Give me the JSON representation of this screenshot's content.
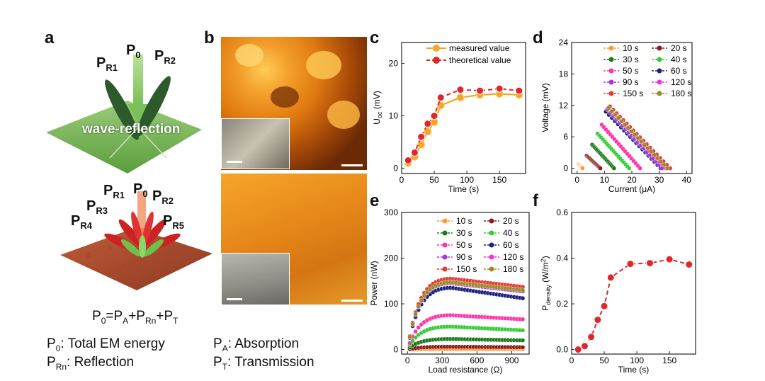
{
  "panels": {
    "a": "a",
    "b": "b",
    "c": "c",
    "d": "d",
    "e": "e",
    "f": "f"
  },
  "diagram_a": {
    "top_labels": [
      "P",
      "0",
      "P",
      "R1",
      "P",
      "R2"
    ],
    "top_caption": "wave-reflection",
    "bottom_labels": [
      {
        "main": "P",
        "sub": "0"
      },
      {
        "main": "P",
        "sub": "R1"
      },
      {
        "main": "P",
        "sub": "R2"
      },
      {
        "main": "P",
        "sub": "R3"
      },
      {
        "main": "P",
        "sub": "R4"
      },
      {
        "main": "P",
        "sub": "R5"
      }
    ],
    "equation": {
      "p0": "P",
      "p0sub": "0",
      "eq": "=",
      "pa": "P",
      "pasub": "A",
      "plus1": "+",
      "prn": "P",
      "prnsub": "Rn",
      "plus2": "+",
      "pt": "P",
      "ptsub": "T"
    }
  },
  "legend_text": {
    "p0": {
      "main": "P",
      "sub": "0",
      "desc": ":  Total EM energy"
    },
    "prn": {
      "main": "P",
      "sub": "Rn",
      "desc": ": Reflection"
    },
    "pa": {
      "main": "P",
      "sub": "A",
      "desc": ":  Absorption"
    },
    "pt": {
      "main": "P",
      "sub": "T",
      "desc": ": Transmission"
    }
  },
  "colors": {
    "orange": "#f5a623",
    "red": "#e0262b",
    "ocher": "#ff9933",
    "darkred": "#8b1a1a",
    "darkgreen": "#1a7a1a",
    "green": "#33cc33",
    "magenta": "#ff33aa",
    "navy": "#1a237e",
    "violet": "#aa33dd",
    "pink": "#ee33cc",
    "red2": "#e53935",
    "olive": "#9a8a20"
  },
  "chart_data": [
    {
      "id": "c",
      "type": "line",
      "xlabel": "Time (s)",
      "ylabel": "U",
      "ylabel_sub": "oc",
      "ylabel_unit": " (mV)",
      "xlim": [
        0,
        190
      ],
      "ylim": [
        -1,
        24
      ],
      "xticks": [
        0,
        50,
        100,
        150
      ],
      "yticks": [
        0,
        10,
        20
      ],
      "legend": [
        "measured value",
        "theoretical value"
      ],
      "series": [
        {
          "name": "measured value",
          "x": [
            10,
            20,
            30,
            40,
            50,
            60,
            90,
            120,
            150,
            180
          ],
          "y": [
            1.0,
            2.2,
            4.5,
            7.0,
            8.8,
            12.0,
            13.5,
            14.0,
            14.2,
            14.0
          ]
        },
        {
          "name": "theoretical value",
          "x": [
            10,
            20,
            30,
            40,
            50,
            60,
            90,
            120,
            150,
            180
          ],
          "y": [
            1.5,
            3.0,
            6.0,
            8.5,
            10.0,
            13.5,
            15.0,
            14.8,
            15.2,
            14.8
          ]
        }
      ]
    },
    {
      "id": "d",
      "type": "line",
      "xlabel": "Current (μA)",
      "ylabel": "Voltage (mV)",
      "xlim": [
        -2,
        42
      ],
      "ylim": [
        -1,
        24
      ],
      "xticks": [
        0,
        10,
        20,
        30,
        40
      ],
      "yticks": [
        0,
        6,
        12,
        18,
        24
      ],
      "legend": [
        "10 s",
        "20 s",
        "30 s",
        "40 s",
        "50 s",
        "60 s",
        "90 s",
        "120 s",
        "150 s",
        "180 s"
      ],
      "series": [
        {
          "name": "10 s",
          "x0": 2.0,
          "x1": 0.5,
          "y0": 0.0,
          "y1": 0.8
        },
        {
          "name": "20 s",
          "x0": 8.5,
          "x1": 3.5,
          "y0": 0.0,
          "y1": 2.4
        },
        {
          "name": "30 s",
          "x0": 13.5,
          "x1": 5.5,
          "y0": 0.0,
          "y1": 4.5
        },
        {
          "name": "40 s",
          "x0": 19.0,
          "x1": 7.5,
          "y0": 0.0,
          "y1": 6.6
        },
        {
          "name": "50 s",
          "x0": 23.0,
          "x1": 9.0,
          "y0": 0.0,
          "y1": 8.3
        },
        {
          "name": "60 s",
          "x0": 30.5,
          "x1": 10.5,
          "y0": 0.0,
          "y1": 10.8
        },
        {
          "name": "90 s",
          "x0": 31.0,
          "x1": 11.0,
          "y0": 0.0,
          "y1": 11.2
        },
        {
          "name": "120 s",
          "x0": 32.5,
          "x1": 11.5,
          "y0": 0.0,
          "y1": 11.6
        },
        {
          "name": "150 s",
          "x0": 34.0,
          "x1": 12.0,
          "y0": 0.0,
          "y1": 11.8
        },
        {
          "name": "180 s",
          "x0": 33.0,
          "x1": 11.5,
          "y0": 0.0,
          "y1": 11.5
        }
      ]
    },
    {
      "id": "e",
      "type": "line",
      "xlabel": "Load resistance (Ω)",
      "ylabel": "Power (nW)",
      "xlim": [
        -50,
        1050
      ],
      "ylim": [
        -10,
        300
      ],
      "xticks": [
        0,
        300,
        600,
        900
      ],
      "yticks": [
        0,
        100,
        200,
        300
      ],
      "legend": [
        "10 s",
        "20 s",
        "30 s",
        "40 s",
        "50 s",
        "60 s",
        "90 s",
        "120 s",
        "150 s",
        "180 s"
      ],
      "series": [
        {
          "name": "10 s",
          "peak": 1.0,
          "end": 1.0
        },
        {
          "name": "20 s",
          "peak": 6.0,
          "end": 5.0
        },
        {
          "name": "30 s",
          "peak": 23.0,
          "end": 20.0
        },
        {
          "name": "40 s",
          "peak": 50.0,
          "end": 42.0
        },
        {
          "name": "50 s",
          "peak": 75.0,
          "end": 66.0
        },
        {
          "name": "60 s",
          "peak": 135.0,
          "end": 112.0
        },
        {
          "name": "90 s",
          "peak": 145.0,
          "end": 127.0
        },
        {
          "name": "120 s",
          "peak": 148.0,
          "end": 131.0
        },
        {
          "name": "150 s",
          "peak": 155.0,
          "end": 137.0
        },
        {
          "name": "180 s",
          "peak": 147.0,
          "end": 130.0
        }
      ]
    },
    {
      "id": "f",
      "type": "line",
      "xlabel": "Time (s)",
      "ylabel": "P",
      "ylabel_sub": "density",
      "ylabel_unit": " (W/m",
      "ylabel_sup": "2",
      "ylabel_end": ")",
      "xlim": [
        0,
        190
      ],
      "ylim": [
        -0.02,
        0.6
      ],
      "xticks": [
        0,
        50,
        100,
        150
      ],
      "yticks": [
        0.0,
        0.2,
        0.4,
        0.6
      ],
      "ytick_labels": [
        "0.0",
        "0.2",
        "0.4",
        "0.6"
      ],
      "series": [
        {
          "name": "P density",
          "x": [
            10,
            20,
            30,
            40,
            50,
            60,
            90,
            120,
            150,
            180
          ],
          "y": [
            0.0,
            0.015,
            0.055,
            0.13,
            0.19,
            0.315,
            0.375,
            0.378,
            0.395,
            0.372
          ]
        }
      ]
    }
  ]
}
